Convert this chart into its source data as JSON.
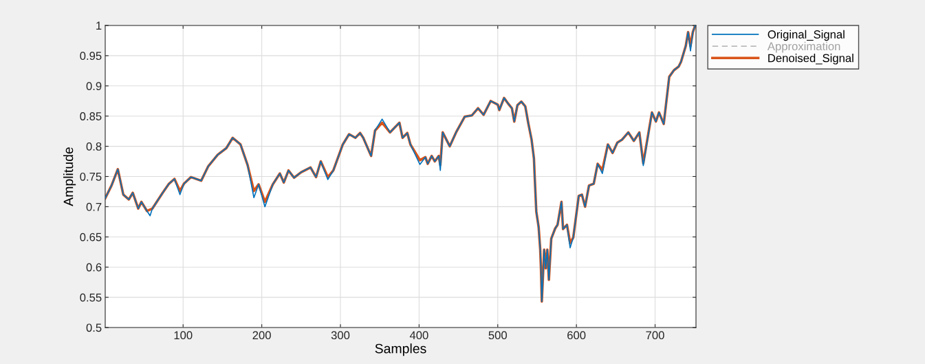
{
  "chart_data": {
    "type": "line",
    "xlabel": "Samples",
    "ylabel": "Amplitude",
    "xlim": [
      1,
      752
    ],
    "ylim": [
      0.5,
      1
    ],
    "xticks": [
      100,
      200,
      300,
      400,
      500,
      600,
      700
    ],
    "yticks": [
      0.5,
      0.55,
      0.6,
      0.65,
      0.7,
      0.75,
      0.8,
      0.85,
      0.9,
      0.95,
      1
    ],
    "grid": true,
    "legend": "top right",
    "series": [
      {
        "name": "Original_Signal",
        "color": "#0072bd",
        "line_style": "solid",
        "x": [
          1,
          9,
          17,
          24,
          31,
          36,
          43,
          47,
          54,
          58,
          61,
          74,
          82,
          89,
          96,
          101,
          110,
          123,
          132,
          144,
          155,
          163,
          173,
          182,
          190,
          196,
          204,
          214,
          223,
          228,
          234,
          241,
          250,
          259,
          262,
          269,
          275,
          284,
          291,
          303,
          311,
          319,
          325,
          329,
          339,
          344,
          353,
          363,
          375,
          379,
          385,
          389,
          401,
          408,
          411,
          416,
          420,
          425,
          427,
          430,
          439,
          447,
          458,
          467,
          475,
          482,
          491,
          500,
          502,
          508,
          513,
          518,
          521,
          525,
          530,
          535,
          539,
          543,
          546,
          547,
          549,
          552,
          554,
          555,
          556,
          559,
          561,
          563,
          565,
          568,
          573,
          576,
          581,
          583,
          588,
          592,
          596,
          603,
          607,
          611,
          616,
          622,
          627,
          633,
          640,
          646,
          652,
          658,
          666,
          673,
          680,
          685,
          696,
          701,
          705,
          711,
          718,
          724,
          730,
          733,
          739,
          742,
          745,
          748,
          751
        ],
        "values": [
          0.714,
          0.735,
          0.762,
          0.72,
          0.712,
          0.723,
          0.697,
          0.708,
          0.693,
          0.685,
          0.697,
          0.723,
          0.738,
          0.746,
          0.72,
          0.738,
          0.749,
          0.743,
          0.767,
          0.786,
          0.797,
          0.814,
          0.803,
          0.769,
          0.715,
          0.737,
          0.7,
          0.737,
          0.755,
          0.74,
          0.76,
          0.748,
          0.757,
          0.763,
          0.765,
          0.749,
          0.775,
          0.745,
          0.76,
          0.803,
          0.82,
          0.814,
          0.822,
          0.814,
          0.784,
          0.826,
          0.845,
          0.823,
          0.839,
          0.814,
          0.822,
          0.803,
          0.77,
          0.782,
          0.771,
          0.784,
          0.775,
          0.784,
          0.76,
          0.823,
          0.8,
          0.823,
          0.849,
          0.851,
          0.863,
          0.852,
          0.875,
          0.869,
          0.86,
          0.88,
          0.871,
          0.863,
          0.841,
          0.868,
          0.874,
          0.866,
          0.837,
          0.811,
          0.78,
          0.749,
          0.692,
          0.666,
          0.629,
          0.595,
          0.543,
          0.629,
          0.598,
          0.629,
          0.579,
          0.647,
          0.664,
          0.67,
          0.708,
          0.663,
          0.67,
          0.632,
          0.649,
          0.718,
          0.72,
          0.7,
          0.735,
          0.738,
          0.771,
          0.755,
          0.803,
          0.789,
          0.806,
          0.811,
          0.823,
          0.809,
          0.823,
          0.768,
          0.856,
          0.841,
          0.856,
          0.837,
          0.915,
          0.926,
          0.932,
          0.94,
          0.966,
          0.989,
          0.958,
          0.989,
          1.0
        ]
      },
      {
        "name": "Approximation",
        "color": "#a0a0a0",
        "line_style": "dashed"
      },
      {
        "name": "Denoised_Signal",
        "color": "#d95319",
        "line_style": "solid",
        "x": [
          1,
          9,
          17,
          24,
          31,
          36,
          43,
          47,
          54,
          61,
          74,
          82,
          89,
          96,
          101,
          110,
          123,
          132,
          144,
          155,
          163,
          173,
          182,
          190,
          196,
          204,
          214,
          223,
          228,
          234,
          241,
          250,
          259,
          262,
          269,
          275,
          284,
          291,
          303,
          311,
          319,
          325,
          329,
          339,
          344,
          353,
          363,
          375,
          379,
          385,
          389,
          401,
          408,
          411,
          416,
          420,
          425,
          427,
          430,
          439,
          447,
          458,
          467,
          475,
          482,
          491,
          500,
          502,
          508,
          513,
          518,
          521,
          525,
          530,
          535,
          539,
          543,
          546,
          547,
          549,
          552,
          554,
          555,
          556,
          559,
          561,
          563,
          565,
          568,
          573,
          576,
          581,
          583,
          588,
          592,
          596,
          603,
          607,
          611,
          616,
          622,
          627,
          633,
          640,
          646,
          652,
          658,
          666,
          673,
          680,
          685,
          696,
          701,
          705,
          711,
          718,
          724,
          730,
          733,
          739,
          742,
          745,
          748,
          751
        ],
        "values": [
          0.714,
          0.735,
          0.762,
          0.72,
          0.712,
          0.723,
          0.697,
          0.708,
          0.693,
          0.697,
          0.723,
          0.738,
          0.746,
          0.726,
          0.738,
          0.749,
          0.743,
          0.767,
          0.786,
          0.797,
          0.814,
          0.803,
          0.769,
          0.726,
          0.737,
          0.708,
          0.737,
          0.755,
          0.74,
          0.76,
          0.748,
          0.757,
          0.763,
          0.765,
          0.749,
          0.775,
          0.749,
          0.76,
          0.803,
          0.82,
          0.814,
          0.822,
          0.814,
          0.784,
          0.826,
          0.839,
          0.823,
          0.839,
          0.814,
          0.822,
          0.803,
          0.777,
          0.782,
          0.771,
          0.784,
          0.775,
          0.784,
          0.769,
          0.823,
          0.8,
          0.823,
          0.849,
          0.851,
          0.863,
          0.852,
          0.875,
          0.869,
          0.86,
          0.88,
          0.871,
          0.863,
          0.841,
          0.868,
          0.874,
          0.866,
          0.837,
          0.811,
          0.78,
          0.749,
          0.692,
          0.666,
          0.629,
          0.595,
          0.543,
          0.629,
          0.598,
          0.629,
          0.579,
          0.647,
          0.664,
          0.67,
          0.708,
          0.663,
          0.67,
          0.64,
          0.649,
          0.718,
          0.72,
          0.7,
          0.735,
          0.738,
          0.771,
          0.761,
          0.803,
          0.789,
          0.806,
          0.811,
          0.823,
          0.809,
          0.823,
          0.772,
          0.856,
          0.841,
          0.856,
          0.837,
          0.915,
          0.926,
          0.932,
          0.94,
          0.966,
          0.989,
          0.966,
          0.989,
          1.0
        ]
      }
    ]
  }
}
